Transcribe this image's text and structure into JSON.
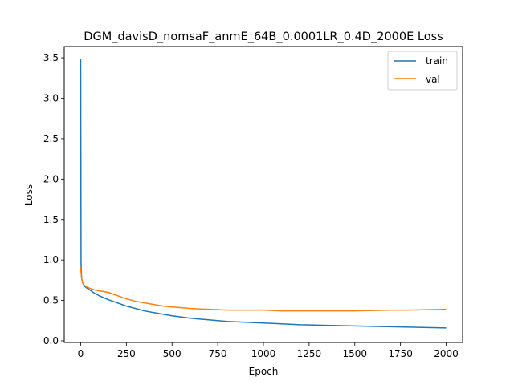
{
  "chart_data": {
    "type": "line",
    "title": "DGM_davisD_nomsaF_anmE_64B_0.0001LR_0.4D_2000E Loss",
    "xlabel": "Epoch",
    "ylabel": "Loss",
    "xlim": [
      -90,
      2090
    ],
    "ylim": [
      -0.02,
      3.64
    ],
    "xticks": [
      0,
      250,
      500,
      750,
      1000,
      1250,
      1500,
      1750,
      2000
    ],
    "yticks": [
      0.0,
      0.5,
      1.0,
      1.5,
      2.0,
      2.5,
      3.0,
      3.5
    ],
    "xtick_labels": [
      "0",
      "250",
      "500",
      "750",
      "1000",
      "1250",
      "1500",
      "1750",
      "2000"
    ],
    "ytick_labels": [
      "0.0",
      "0.5",
      "1.0",
      "1.5",
      "2.0",
      "2.5",
      "3.0",
      "3.5"
    ],
    "grid": false,
    "legend_position": "top-right",
    "series": [
      {
        "name": "train",
        "color": "#1f77b4",
        "x": [
          0,
          2,
          5,
          10,
          20,
          30,
          50,
          75,
          100,
          150,
          200,
          250,
          300,
          350,
          400,
          450,
          500,
          600,
          700,
          800,
          900,
          1000,
          1100,
          1200,
          1300,
          1400,
          1500,
          1600,
          1700,
          1800,
          1900,
          2000
        ],
        "y": [
          3.48,
          0.95,
          0.78,
          0.72,
          0.68,
          0.66,
          0.63,
          0.59,
          0.56,
          0.51,
          0.47,
          0.43,
          0.4,
          0.37,
          0.35,
          0.33,
          0.31,
          0.28,
          0.26,
          0.24,
          0.23,
          0.22,
          0.21,
          0.2,
          0.195,
          0.19,
          0.185,
          0.18,
          0.175,
          0.17,
          0.165,
          0.16
        ]
      },
      {
        "name": "val",
        "color": "#ff7f0e",
        "x": [
          0,
          2,
          5,
          10,
          20,
          30,
          50,
          75,
          100,
          125,
          150,
          175,
          200,
          250,
          300,
          350,
          400,
          450,
          500,
          600,
          700,
          800,
          900,
          1000,
          1100,
          1200,
          1300,
          1400,
          1500,
          1600,
          1700,
          1800,
          1900,
          2000
        ],
        "y": [
          0.91,
          0.85,
          0.78,
          0.72,
          0.69,
          0.67,
          0.65,
          0.63,
          0.62,
          0.61,
          0.6,
          0.58,
          0.56,
          0.52,
          0.49,
          0.47,
          0.45,
          0.43,
          0.42,
          0.4,
          0.39,
          0.38,
          0.38,
          0.38,
          0.37,
          0.37,
          0.37,
          0.37,
          0.37,
          0.375,
          0.38,
          0.38,
          0.385,
          0.39
        ]
      }
    ]
  }
}
